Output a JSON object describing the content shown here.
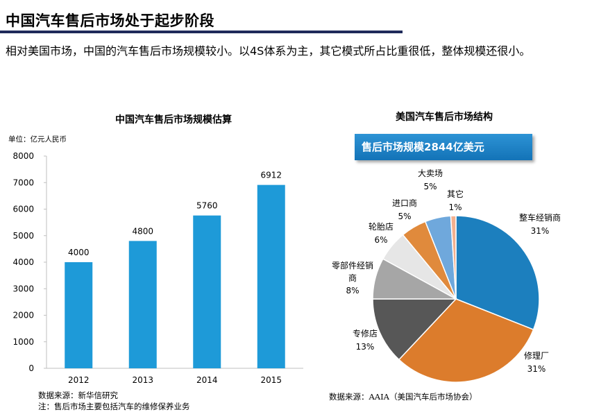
{
  "header": {
    "title": "中国汽车售后市场处于起步阶段",
    "subtitle": "相对美国市场，中国的汽车售后市场规模较小。以4S体系为主，其它模式所占比重很低，整体规模还很小。"
  },
  "bar_section": {
    "unit": "单位：亿元人民币",
    "source": "数据来源：新华信研究",
    "note": "注：售后市场主要包括汽车的维修保养业务"
  },
  "pie_section": {
    "banner": "售后市场规模2844亿美元",
    "source": "数据来源：AAIA（美国汽车后市场协会）"
  },
  "colors": {
    "bar": "#1e9ad8",
    "title_rule": "#1f2a5a"
  },
  "chart_data": [
    {
      "type": "bar",
      "title": "中国汽车售后市场规模估算",
      "categories": [
        "2012",
        "2013",
        "2014",
        "2015"
      ],
      "values": [
        4000,
        4800,
        5760,
        6912
      ],
      "ylim": [
        0,
        8000
      ],
      "yticks": [
        "0",
        "1000",
        "2000",
        "3000",
        "4000",
        "5000",
        "6000",
        "7000",
        "8000"
      ],
      "grid": false
    },
    {
      "type": "pie",
      "title": "美国汽车售后市场结构",
      "slices": [
        {
          "label": "整车经销商",
          "pct_label": "31%",
          "value": 31,
          "color": "#1c7fbe"
        },
        {
          "label": "修理厂",
          "pct_label": "31%",
          "value": 31,
          "color": "#dc7c2c"
        },
        {
          "label": "专修店",
          "pct_label": "13%",
          "value": 13,
          "color": "#575757"
        },
        {
          "label": "零部件经销商",
          "pct_label": "8%",
          "value": 8,
          "color": "#a6a6a6"
        },
        {
          "label": "轮胎店",
          "pct_label": "6%",
          "value": 6,
          "color": "#e6e6e6"
        },
        {
          "label": "进口商",
          "pct_label": "5%",
          "value": 5,
          "color": "#e08a3c"
        },
        {
          "label": "大卖场",
          "pct_label": "5%",
          "value": 5,
          "color": "#6fa8dc"
        },
        {
          "label": "其它",
          "pct_label": "1%",
          "value": 1,
          "color": "#f2b08f"
        }
      ]
    }
  ]
}
